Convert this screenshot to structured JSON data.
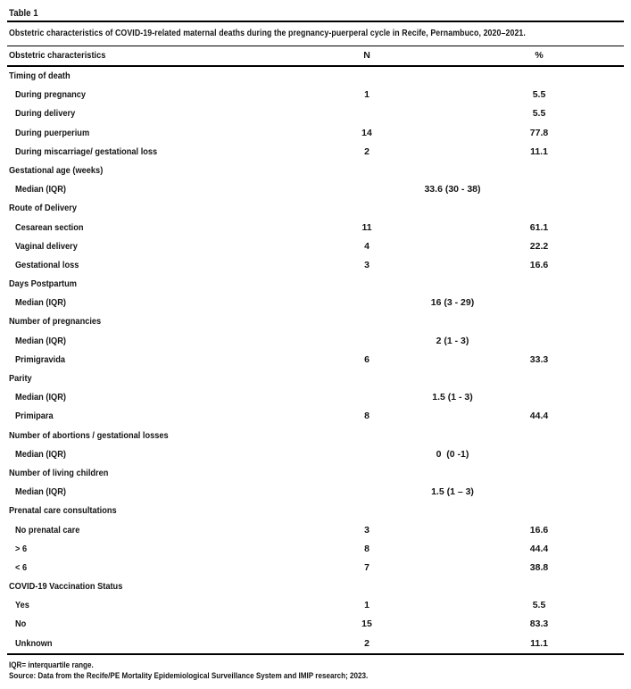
{
  "table": {
    "label": "Table 1",
    "caption": "Obstetric characteristics of COVID-19-related maternal deaths during the pregnancy-puerperal cycle in Recife, Pernambuco, 2020–2021.",
    "columns": {
      "characteristics": "Obstetric characteristics",
      "n": "N",
      "pct": "%"
    },
    "rows": [
      {
        "type": "section",
        "label": "Timing of death"
      },
      {
        "type": "item",
        "label": "During pregnancy",
        "n": "1",
        "pct": "5.5"
      },
      {
        "type": "item",
        "label": "During delivery",
        "n": "",
        "pct": "5.5"
      },
      {
        "type": "item",
        "label": "During puerperium",
        "n": "14",
        "pct": "77.8"
      },
      {
        "type": "item",
        "label": "During miscarriage/ gestational loss",
        "n": "2",
        "pct": "11.1"
      },
      {
        "type": "section",
        "label": "Gestational age (weeks)"
      },
      {
        "type": "item",
        "label": "Median (IQR)",
        "median": "33.6 (30 - 38)"
      },
      {
        "type": "section",
        "label": "Route of Delivery"
      },
      {
        "type": "item",
        "label": "Cesarean section",
        "n": "11",
        "pct": "61.1"
      },
      {
        "type": "item",
        "label": "Vaginal delivery",
        "n": "4",
        "pct": "22.2"
      },
      {
        "type": "item",
        "label": "Gestational loss",
        "n": "3",
        "pct": "16.6"
      },
      {
        "type": "section",
        "label": "Days Postpartum"
      },
      {
        "type": "item",
        "label": "Median (IQR)",
        "median": "16 (3 - 29)"
      },
      {
        "type": "section",
        "label": "Number of pregnancies"
      },
      {
        "type": "item",
        "label": "Median (IQR)",
        "median": "2 (1 - 3)"
      },
      {
        "type": "item",
        "label": "Primigravida",
        "n": "6",
        "pct": "33.3"
      },
      {
        "type": "section",
        "label": "Parity"
      },
      {
        "type": "item",
        "label": "Median (IQR)",
        "median": "1.5 (1 - 3)"
      },
      {
        "type": "item",
        "label": "Primipara",
        "n": "8",
        "pct": "44.4"
      },
      {
        "type": "section",
        "label": "Number of abortions / gestational losses"
      },
      {
        "type": "item",
        "label": "Median (IQR)",
        "median": "0  (0 -1)"
      },
      {
        "type": "section",
        "label": "Number of living children"
      },
      {
        "type": "item",
        "label": "Median (IQR)",
        "median": "1.5 (1 – 3)"
      },
      {
        "type": "section",
        "label": "Prenatal care consultations"
      },
      {
        "type": "item",
        "label": "No prenatal care",
        "n": "3",
        "pct": "16.6"
      },
      {
        "type": "item",
        "label": "> 6",
        "n": "8",
        "pct": "44.4"
      },
      {
        "type": "item",
        "label": "< 6",
        "n": "7",
        "pct": "38.8"
      },
      {
        "type": "section",
        "label": "COVID-19 Vaccination Status"
      },
      {
        "type": "item",
        "label": "Yes",
        "n": "1",
        "pct": "5.5"
      },
      {
        "type": "item",
        "label": "No",
        "n": "15",
        "pct": "83.3"
      },
      {
        "type": "item",
        "label": "Unknown",
        "n": "2",
        "pct": "11.1"
      }
    ],
    "footnotes": [
      "IQR= interquartile range.",
      "Source: Data from the Recife/PE Mortality Epidemiological Surveillance System and IMIP research; 2023."
    ]
  },
  "colors": {
    "text": "#141414",
    "rule": "#000000",
    "background": "#ffffff"
  }
}
